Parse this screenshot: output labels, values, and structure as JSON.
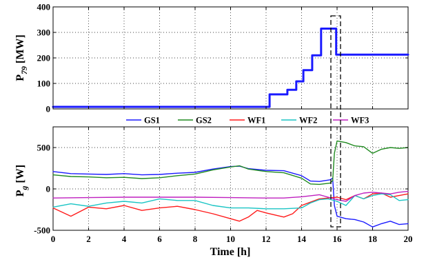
{
  "chart_data": [
    {
      "type": "line",
      "ylabel": "P",
      "ylabel_sub": "79",
      "ylabel_unit": "[MW]",
      "xlim": [
        0,
        20
      ],
      "ylim": [
        0,
        400
      ],
      "x_ticks": [
        0,
        2,
        4,
        6,
        8,
        10,
        12,
        14,
        16,
        18,
        20
      ],
      "y_ticks": [
        0,
        100,
        200,
        300,
        400
      ],
      "grid": true,
      "series": [
        {
          "color": "#1a1aff",
          "step": true,
          "x": [
            0,
            12.2,
            12.2,
            13.2,
            13.2,
            13.7,
            13.7,
            14.1,
            14.1,
            14.6,
            14.6,
            15.1,
            15.1,
            15.6,
            15.6,
            15.95,
            15.95,
            20
          ],
          "y": [
            8,
            8,
            57,
            57,
            75,
            75,
            108,
            108,
            152,
            152,
            210,
            210,
            315,
            315,
            315,
            315,
            213,
            213
          ]
        }
      ]
    },
    {
      "type": "line",
      "ylabel": "P",
      "ylabel_sub": "g",
      "ylabel_unit": "[W]",
      "xlabel": "Time [h]",
      "xlim": [
        0,
        20
      ],
      "ylim": [
        -500,
        750
      ],
      "x_ticks": [
        0,
        2,
        4,
        6,
        8,
        10,
        12,
        14,
        16,
        18,
        20
      ],
      "y_ticks": [
        -500,
        0,
        500
      ],
      "grid": true,
      "legend_position": "top",
      "series": [
        {
          "name": "GS1",
          "color": "#1a1aff",
          "x": [
            0,
            1,
            2,
            3,
            4,
            5,
            6,
            7,
            8,
            9,
            10,
            10.5,
            11,
            12,
            13,
            14,
            14.5,
            15,
            15.6,
            15.75,
            15.85,
            16,
            16.5,
            17,
            17.5,
            18,
            18.5,
            19,
            19.5,
            20
          ],
          "y": [
            210,
            185,
            180,
            175,
            185,
            170,
            175,
            190,
            200,
            240,
            270,
            275,
            245,
            225,
            220,
            160,
            95,
            90,
            110,
            130,
            -200,
            -330,
            -360,
            -370,
            -400,
            -460,
            -420,
            -390,
            -430,
            -420
          ]
        },
        {
          "name": "GS2",
          "color": "#1f8a1f",
          "x": [
            0,
            1,
            2,
            3,
            4,
            5,
            6,
            7,
            8,
            9,
            10,
            10.5,
            11,
            12,
            13,
            14,
            14.5,
            15,
            15.6,
            15.75,
            15.85,
            16,
            16.5,
            17,
            17.5,
            18,
            18.5,
            19,
            19.5,
            20
          ],
          "y": [
            170,
            150,
            145,
            135,
            140,
            125,
            135,
            160,
            180,
            230,
            265,
            280,
            240,
            210,
            195,
            130,
            60,
            55,
            70,
            100,
            430,
            580,
            560,
            520,
            510,
            430,
            480,
            500,
            490,
            500
          ]
        },
        {
          "name": "WF1",
          "color": "#ff1a1a",
          "x": [
            0,
            0.5,
            1,
            2,
            3,
            4,
            5,
            6,
            7,
            8,
            9,
            10,
            10.5,
            11,
            11.5,
            12,
            13,
            13.5,
            14,
            14.5,
            15,
            15.5,
            16,
            16.5,
            17,
            17.5,
            18,
            18.5,
            19,
            19.5,
            20
          ],
          "y": [
            -230,
            -280,
            -330,
            -220,
            -240,
            -200,
            -260,
            -230,
            -210,
            -250,
            -300,
            -360,
            -390,
            -340,
            -260,
            -290,
            -340,
            -300,
            -200,
            -160,
            -120,
            -110,
            -100,
            -130,
            -80,
            -120,
            -60,
            -50,
            -100,
            -80,
            -60
          ]
        },
        {
          "name": "WF2",
          "color": "#19c4c4",
          "x": [
            0,
            1,
            2,
            3,
            4,
            5,
            6,
            7,
            8,
            9,
            10,
            11,
            12,
            13,
            14,
            14.5,
            15,
            15.5,
            16,
            16.5,
            17,
            17.5,
            18,
            18.5,
            19,
            19.5,
            20
          ],
          "y": [
            -220,
            -180,
            -210,
            -170,
            -150,
            -170,
            -120,
            -140,
            -140,
            -200,
            -230,
            -230,
            -240,
            -240,
            -230,
            -170,
            -130,
            -120,
            -150,
            -200,
            -80,
            -120,
            -80,
            -60,
            -70,
            -140,
            -130
          ]
        },
        {
          "name": "WF3",
          "color": "#bf1fbf",
          "x": [
            0,
            2,
            4,
            6,
            8,
            10,
            12,
            13,
            14,
            15,
            15.5,
            16,
            16.5,
            17,
            17.5,
            18,
            18.5,
            19,
            19.5,
            20
          ],
          "y": [
            -110,
            -105,
            -100,
            -100,
            -100,
            -105,
            -110,
            -110,
            -95,
            -70,
            -100,
            -130,
            -150,
            -80,
            -50,
            -40,
            -50,
            -60,
            -40,
            -30
          ]
        }
      ]
    }
  ]
}
